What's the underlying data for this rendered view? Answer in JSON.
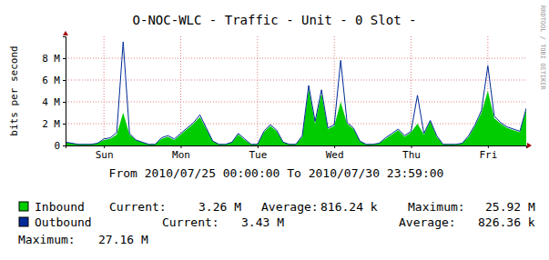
{
  "chart_data": {
    "type": "area",
    "title": "O-NOC-WLC - Traffic - Unit - 0 Slot -",
    "subtitle": "From 2010/07/25 00:00:00 To 2010/07/30 23:59:00",
    "y_label": "bits per second",
    "watermark": "RRDTOOL / TOBI OETIKER",
    "x": [
      0,
      2,
      4,
      6,
      8,
      10,
      12,
      14,
      16,
      18,
      20,
      22,
      24,
      26,
      28,
      30,
      32,
      34,
      36,
      38,
      40,
      42,
      44,
      46,
      48,
      50,
      52,
      54,
      56,
      58,
      60,
      62,
      64,
      66,
      68,
      70,
      72,
      74,
      76,
      78,
      80,
      82,
      84,
      86,
      88,
      90,
      92,
      94,
      96,
      98,
      100,
      102,
      104,
      106,
      108,
      110,
      112,
      114,
      116,
      118,
      120,
      122,
      124,
      126,
      128,
      130,
      132,
      134,
      136,
      138,
      140,
      142,
      144
    ],
    "xlim": [
      0,
      144
    ],
    "xticks": [
      {
        "value": 12,
        "label": "Sun"
      },
      {
        "value": 36,
        "label": "Mon"
      },
      {
        "value": 60,
        "label": "Tue"
      },
      {
        "value": 84,
        "label": "Wed"
      },
      {
        "value": 108,
        "label": "Thu"
      },
      {
        "value": 132,
        "label": "Fri"
      }
    ],
    "ylim": [
      0,
      10
    ],
    "yticks": [
      {
        "value": 0,
        "label": "0"
      },
      {
        "value": 2,
        "label": "2 M"
      },
      {
        "value": 4,
        "label": "4 M"
      },
      {
        "value": 6,
        "label": "6 M"
      },
      {
        "value": 8,
        "label": "8 M"
      }
    ],
    "grid": true,
    "series": [
      {
        "name": "Inbound",
        "type": "area",
        "color": "#00cc00",
        "values": [
          0.3,
          0.2,
          0.1,
          0.1,
          0.1,
          0.2,
          0.5,
          0.6,
          1.0,
          3.0,
          1.0,
          0.5,
          0.3,
          0.1,
          0.1,
          0.6,
          0.8,
          0.5,
          1.0,
          1.5,
          2.0,
          2.6,
          1.5,
          0.4,
          0.1,
          0.1,
          0.3,
          1.0,
          0.5,
          0.1,
          0.1,
          1.2,
          1.8,
          1.3,
          0.3,
          0.1,
          0.1,
          0.8,
          5.2,
          2.0,
          4.8,
          1.5,
          1.8,
          4.0,
          2.0,
          1.5,
          0.4,
          0.1,
          0.1,
          0.2,
          0.6,
          1.0,
          1.4,
          0.8,
          1.2,
          2.0,
          1.0,
          2.2,
          0.8,
          0.1,
          0.1,
          0.1,
          0.2,
          0.8,
          1.8,
          3.0,
          5.0,
          2.5,
          2.0,
          1.6,
          1.4,
          1.2,
          3.3
        ],
        "stats": [
          {
            "label": "Current:",
            "value": 3.26,
            "value_label": "3.26 M"
          },
          {
            "label": "Average:",
            "value": 0.81624,
            "value_label": "816.24 k"
          },
          {
            "label": "Maximum:",
            "value": 25.92,
            "value_label": "25.92 M"
          }
        ]
      },
      {
        "name": "Outbound",
        "type": "line",
        "color": "#002a97",
        "values": [
          0.3,
          0.2,
          0.1,
          0.1,
          0.1,
          0.2,
          0.6,
          0.7,
          1.2,
          9.5,
          1.1,
          0.5,
          0.3,
          0.1,
          0.1,
          0.7,
          0.9,
          0.6,
          1.1,
          1.6,
          2.1,
          2.8,
          1.6,
          0.4,
          0.1,
          0.1,
          0.3,
          1.1,
          0.6,
          0.1,
          0.1,
          1.3,
          1.9,
          1.4,
          0.3,
          0.1,
          0.1,
          0.9,
          5.5,
          2.2,
          5.1,
          1.6,
          1.9,
          7.8,
          2.1,
          1.6,
          0.4,
          0.1,
          0.1,
          0.2,
          0.7,
          1.1,
          1.5,
          0.9,
          1.3,
          4.6,
          1.1,
          2.3,
          0.9,
          0.1,
          0.1,
          0.1,
          0.2,
          0.9,
          1.9,
          3.2,
          7.3,
          2.7,
          2.1,
          1.7,
          1.5,
          1.3,
          3.4
        ],
        "stats": [
          {
            "label": "Current:",
            "value": 3.43,
            "value_label": "3.43 M"
          },
          {
            "label": "Average:",
            "value": 0.82636,
            "value_label": "826.36 k"
          },
          {
            "label": "Maximum:",
            "value": 27.16,
            "value_label": "27.16 M"
          }
        ]
      }
    ]
  }
}
